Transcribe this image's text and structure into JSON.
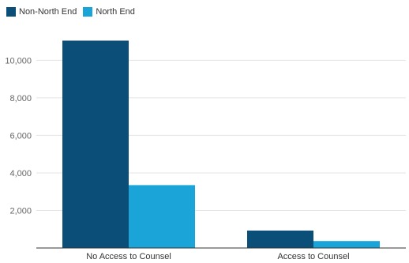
{
  "chart_data": {
    "type": "bar",
    "categories": [
      "No Access to Counsel",
      "Access to Counsel"
    ],
    "series": [
      {
        "name": "Non-North End",
        "color": "#0b4f79",
        "values": [
          11050,
          930
        ]
      },
      {
        "name": "North End",
        "color": "#1ba4d8",
        "values": [
          3350,
          370
        ]
      }
    ],
    "yticks": [
      2000,
      4000,
      6000,
      8000,
      10000
    ],
    "ytick_labels": [
      "2,000",
      "4,000",
      "6,000",
      "8,000",
      "10,000"
    ],
    "ylim": [
      0,
      11700
    ],
    "grid": true,
    "legend_position": "top-left"
  }
}
